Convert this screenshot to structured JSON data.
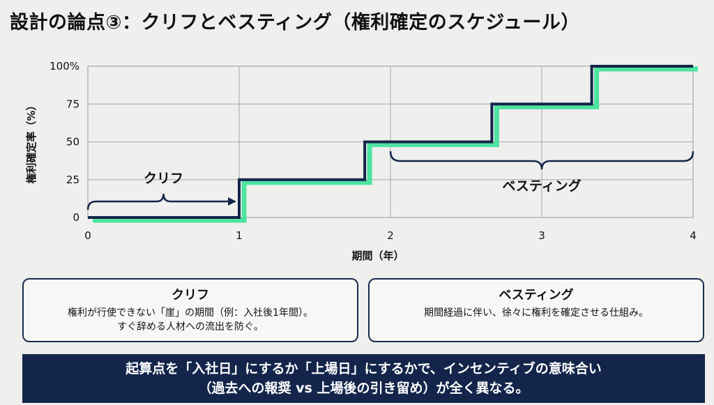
{
  "page": {
    "title": "設計の論点③：クリフとベスティング（権利確定のスケジュール）"
  },
  "chart_data": {
    "type": "line",
    "step": true,
    "title": "",
    "xlabel": "期間（年）",
    "ylabel": "権利確定率（%）",
    "xlim": [
      0,
      4
    ],
    "ylim": [
      0,
      100
    ],
    "x_ticks": [
      "0",
      "1",
      "2",
      "3",
      "4"
    ],
    "y_ticks": [
      "0",
      "25",
      "50",
      "75",
      "100%"
    ],
    "grid": true,
    "series": [
      {
        "x": [
          0,
          1,
          1,
          1.83,
          1.83,
          2.67,
          2.67,
          3.33,
          3.33,
          4
        ],
        "y": [
          0,
          0,
          25,
          25,
          50,
          50,
          75,
          75,
          100,
          100
        ],
        "color": "#13254a"
      },
      {
        "x": [
          0,
          1,
          1,
          1.83,
          1.83,
          2.67,
          2.67,
          3.33,
          3.33,
          4
        ],
        "y": [
          0,
          0,
          25,
          25,
          50,
          50,
          75,
          75,
          100,
          100
        ],
        "color": "#4de3a0"
      }
    ],
    "annotations": [
      {
        "text": "クリフ",
        "x_range": [
          0,
          1
        ]
      },
      {
        "text": "ベスティング",
        "x_range": [
          2,
          4
        ]
      }
    ]
  },
  "boxes": {
    "cliff": {
      "heading": "クリフ",
      "line1": "権利が行使できない「崖」の期間（例：入社後1年間）。",
      "line2": "すぐ辞める人材への流出を防ぐ。"
    },
    "vesting": {
      "heading": "ベスティング",
      "line1": "期間経過に伴い、徐々に権利を確定させる仕組み。"
    }
  },
  "banner": {
    "line1": "起算点を「入社日」にするか「上場日」にするかで、インセンティブの意味合い",
    "line2": "（過去への報奨 vs 上場後の引き留め）が全く異なる。"
  },
  "colors": {
    "navy": "#13254a",
    "green": "#4de3a0",
    "background": "#efefed"
  }
}
